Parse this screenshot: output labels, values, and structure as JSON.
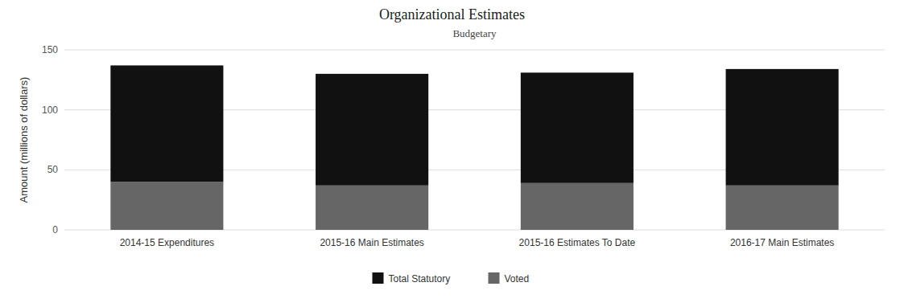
{
  "chart_data": {
    "type": "bar",
    "stacked": true,
    "title": "Organizational Estimates",
    "subtitle": "Budgetary",
    "ylabel": "Amount (millions of dollars)",
    "categories": [
      "2014-15 Expenditures",
      "2015-16 Main Estimates",
      "2015-16 Estimates To Date",
      "2016-17 Main Estimates"
    ],
    "series": [
      {
        "name": "Voted",
        "color": "#666666",
        "values": [
          40,
          37,
          39,
          37
        ]
      },
      {
        "name": "Total Statutory",
        "color": "#111111",
        "values": [
          97,
          93,
          92,
          97
        ]
      }
    ],
    "ylim": [
      0,
      150
    ],
    "yticks": [
      0,
      50,
      100,
      150
    ],
    "grid": true,
    "legend": "bottom"
  }
}
